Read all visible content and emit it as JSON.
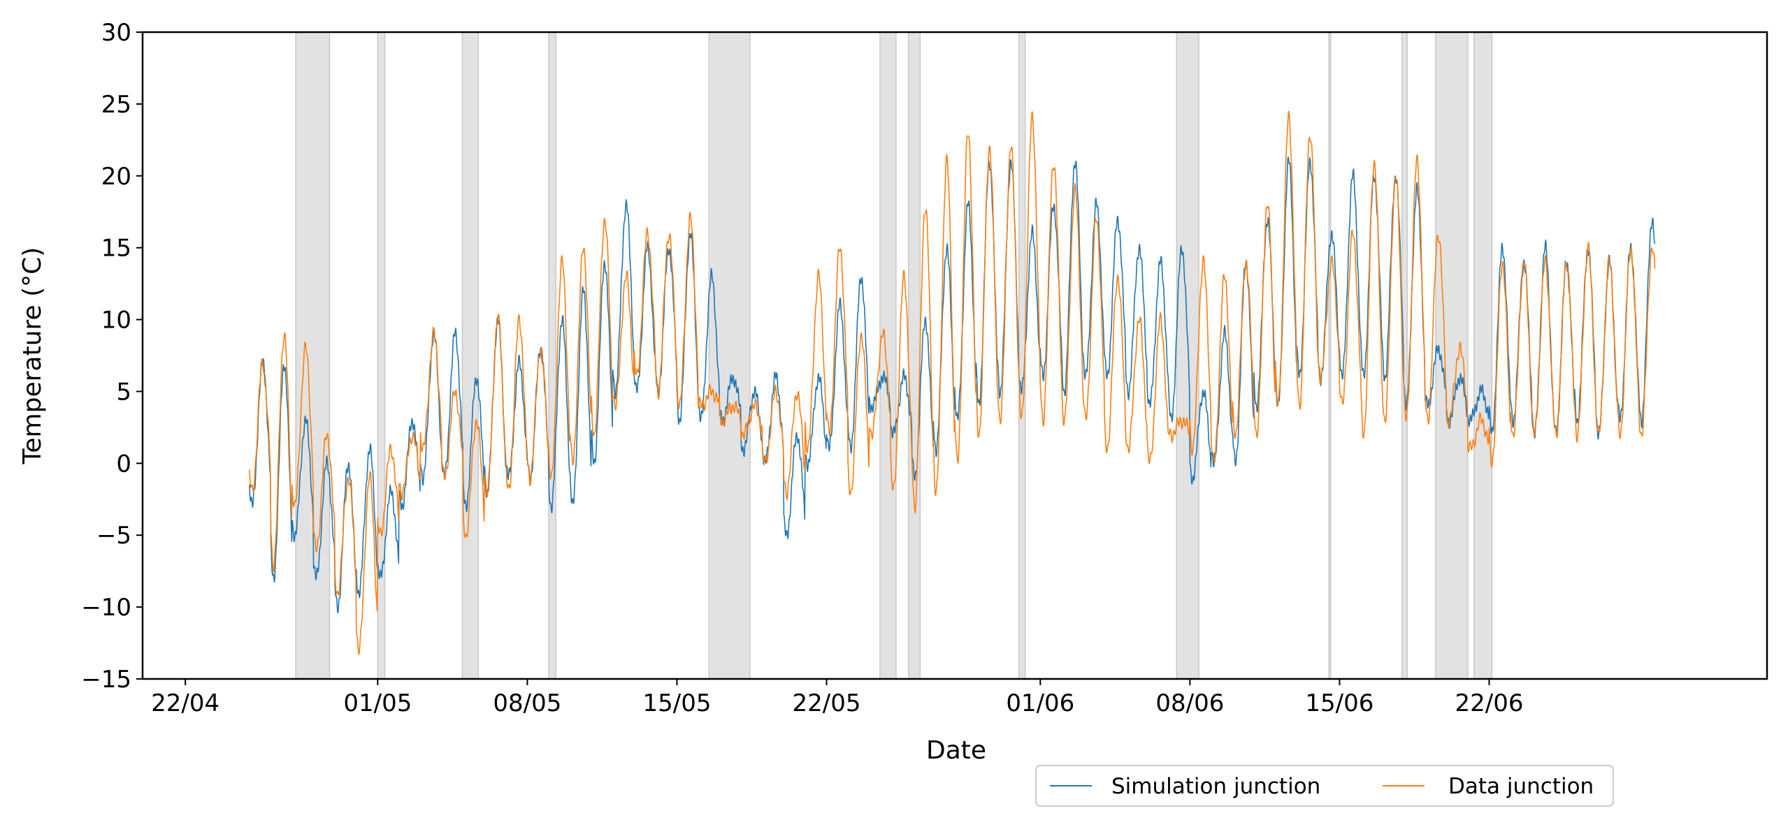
{
  "chart_data": {
    "type": "line",
    "xlabel": "Date",
    "ylabel": "Temperature (°C)",
    "x_domain": [
      "2020-04-20",
      "2020-07-05"
    ],
    "ylim": [
      -15,
      30
    ],
    "yticks": [
      -15,
      -10,
      -5,
      0,
      5,
      10,
      15,
      20,
      25,
      30
    ],
    "xticks": [
      {
        "date": "2020-04-22",
        "label": "22/04"
      },
      {
        "date": "2020-05-01",
        "label": "01/05"
      },
      {
        "date": "2020-05-08",
        "label": "08/05"
      },
      {
        "date": "2020-05-15",
        "label": "15/05"
      },
      {
        "date": "2020-05-22",
        "label": "22/05"
      },
      {
        "date": "2020-06-01",
        "label": "01/06"
      },
      {
        "date": "2020-06-08",
        "label": "08/06"
      },
      {
        "date": "2020-06-15",
        "label": "15/06"
      },
      {
        "date": "2020-06-22",
        "label": "22/06"
      }
    ],
    "grid": false,
    "legend_position": "bottom-right, outside below axes",
    "shaded_periods": [
      [
        "2020-04-27 04:00",
        "2020-04-28 18:00"
      ],
      [
        "2020-05-01 00:00",
        "2020-05-01 08:00"
      ],
      [
        "2020-05-04 23:00",
        "2020-05-05 17:00"
      ],
      [
        "2020-05-09 00:00",
        "2020-05-09 08:00"
      ],
      [
        "2020-05-16 12:00",
        "2020-05-18 10:00"
      ],
      [
        "2020-05-24 12:00",
        "2020-05-25 06:00"
      ],
      [
        "2020-05-25 20:00",
        "2020-05-26 09:00"
      ],
      [
        "2020-05-31 00:00",
        "2020-05-31 07:00"
      ],
      [
        "2020-06-07 09:00",
        "2020-06-08 10:00"
      ],
      [
        "2020-06-14 12:00",
        "2020-06-14 14:00"
      ],
      [
        "2020-06-17 22:00",
        "2020-06-18 04:00"
      ],
      [
        "2020-06-19 12:00",
        "2020-06-21 00:00"
      ],
      [
        "2020-06-21 07:00",
        "2020-06-22 03:00"
      ]
    ],
    "series": [
      {
        "name": "Simulation junction",
        "color": "#1f77b4",
        "days": [
          "2020-04-22",
          "2020-04-23",
          "2020-04-24",
          "2020-04-25",
          "2020-04-26",
          "2020-04-27",
          "2020-04-28",
          "2020-04-29",
          "2020-04-30",
          "2020-05-01",
          "2020-05-02",
          "2020-05-03",
          "2020-05-04",
          "2020-05-05",
          "2020-05-06",
          "2020-05-07",
          "2020-05-08",
          "2020-05-09",
          "2020-05-10",
          "2020-05-11",
          "2020-05-12",
          "2020-05-13",
          "2020-05-14",
          "2020-05-15",
          "2020-05-16",
          "2020-05-17",
          "2020-05-18",
          "2020-05-19",
          "2020-05-20",
          "2020-05-21",
          "2020-05-22",
          "2020-05-23",
          "2020-05-24",
          "2020-05-25",
          "2020-05-26",
          "2020-05-27",
          "2020-05-28",
          "2020-05-29",
          "2020-05-30",
          "2020-05-31",
          "2020-06-01",
          "2020-06-02",
          "2020-06-03",
          "2020-06-04",
          "2020-06-05",
          "2020-06-06",
          "2020-06-07",
          "2020-06-08",
          "2020-06-09",
          "2020-06-10",
          "2020-06-11",
          "2020-06-12",
          "2020-06-13",
          "2020-06-14",
          "2020-06-15",
          "2020-06-16",
          "2020-06-17",
          "2020-06-18",
          "2020-06-19",
          "2020-06-20",
          "2020-06-21",
          "2020-06-22",
          "2020-06-23",
          "2020-06-24",
          "2020-06-25",
          "2020-06-26",
          "2020-06-27",
          "2020-06-28",
          "2020-06-29"
        ],
        "daily_max": [
          null,
          null,
          null,
          7,
          7,
          3,
          0,
          0,
          1,
          -2,
          3,
          9,
          9,
          6,
          10,
          7,
          8,
          10,
          12,
          14,
          18,
          15,
          15,
          16,
          13,
          6,
          5,
          6,
          2,
          6,
          11,
          13,
          6,
          6,
          10,
          15,
          18,
          21,
          21,
          16,
          18,
          21,
          18,
          17,
          15,
          14,
          15,
          5,
          9,
          14,
          17,
          21,
          21,
          16,
          20,
          20,
          20,
          19,
          8,
          6,
          5,
          15,
          14,
          15,
          14,
          15,
          14,
          15,
          17
        ],
        "daily_min": [
          null,
          null,
          null,
          -3,
          -8,
          -5,
          -8,
          -10,
          -9,
          -8,
          -3,
          -1,
          -1,
          -3,
          -2,
          -1,
          -1,
          -3,
          -3,
          0,
          5,
          5,
          5,
          3,
          3,
          3,
          1,
          0,
          -5,
          0,
          1,
          1,
          4,
          2,
          -1,
          1,
          3,
          4,
          5,
          5,
          6,
          5,
          6,
          6,
          5,
          4,
          3,
          -1,
          0,
          0,
          4,
          4,
          6,
          6,
          6,
          6,
          6,
          4,
          4,
          3,
          3,
          2,
          3,
          2,
          2,
          3,
          2,
          3,
          3
        ]
      },
      {
        "name": "Data junction",
        "color": "#ff7f0e",
        "days": [
          "2020-04-22",
          "2020-04-23",
          "2020-04-24",
          "2020-04-25",
          "2020-04-26",
          "2020-04-27",
          "2020-04-28",
          "2020-04-29",
          "2020-04-30",
          "2020-05-01",
          "2020-05-02",
          "2020-05-03",
          "2020-05-04",
          "2020-05-05",
          "2020-05-06",
          "2020-05-07",
          "2020-05-08",
          "2020-05-09",
          "2020-05-10",
          "2020-05-11",
          "2020-05-12",
          "2020-05-13",
          "2020-05-14",
          "2020-05-15",
          "2020-05-16",
          "2020-05-17",
          "2020-05-18",
          "2020-05-19",
          "2020-05-20",
          "2020-05-21",
          "2020-05-22",
          "2020-05-23",
          "2020-05-24",
          "2020-05-25",
          "2020-05-26",
          "2020-05-27",
          "2020-05-28",
          "2020-05-29",
          "2020-05-30",
          "2020-05-31",
          "2020-06-01",
          "2020-06-02",
          "2020-06-03",
          "2020-06-04",
          "2020-06-05",
          "2020-06-06",
          "2020-06-07",
          "2020-06-08",
          "2020-06-09",
          "2020-06-10",
          "2020-06-11",
          "2020-06-12",
          "2020-06-13",
          "2020-06-14",
          "2020-06-15",
          "2020-06-16",
          "2020-06-17",
          "2020-06-18",
          "2020-06-19",
          "2020-06-20",
          "2020-06-21",
          "2020-06-22",
          "2020-06-23",
          "2020-06-24",
          "2020-06-25",
          "2020-06-26",
          "2020-06-27",
          "2020-06-28",
          "2020-06-29"
        ],
        "daily_max": [
          null,
          null,
          null,
          7,
          9,
          8,
          2,
          -1,
          -1,
          1,
          2,
          9,
          5,
          3,
          10,
          10,
          8,
          14,
          15,
          17,
          13,
          16,
          16,
          17,
          5,
          4,
          4,
          5,
          5,
          13,
          15,
          9,
          9,
          13,
          18,
          21,
          23,
          22,
          22,
          24,
          21,
          19,
          17,
          13,
          10,
          10,
          3,
          14,
          13,
          14,
          18,
          24,
          23,
          14,
          16,
          21,
          20,
          21,
          16,
          8,
          3,
          14,
          14,
          14,
          14,
          15,
          14,
          15,
          15
        ],
        "daily_min": [
          null,
          null,
          null,
          -2,
          -7,
          -3,
          -6,
          -9,
          -13,
          -5,
          -2,
          1,
          -1,
          -5,
          -2,
          -2,
          -1,
          -1,
          0,
          2,
          4,
          6,
          5,
          4,
          4,
          3,
          2,
          0,
          -2,
          1,
          2,
          -2,
          2,
          -2,
          -3,
          -2,
          0,
          2,
          3,
          3,
          3,
          3,
          3,
          1,
          1,
          0,
          2,
          1,
          0,
          2,
          2,
          4,
          4,
          6,
          4,
          2,
          3,
          3,
          3,
          3,
          1,
          0,
          2,
          2,
          2,
          2,
          2,
          2,
          2
        ]
      }
    ]
  }
}
